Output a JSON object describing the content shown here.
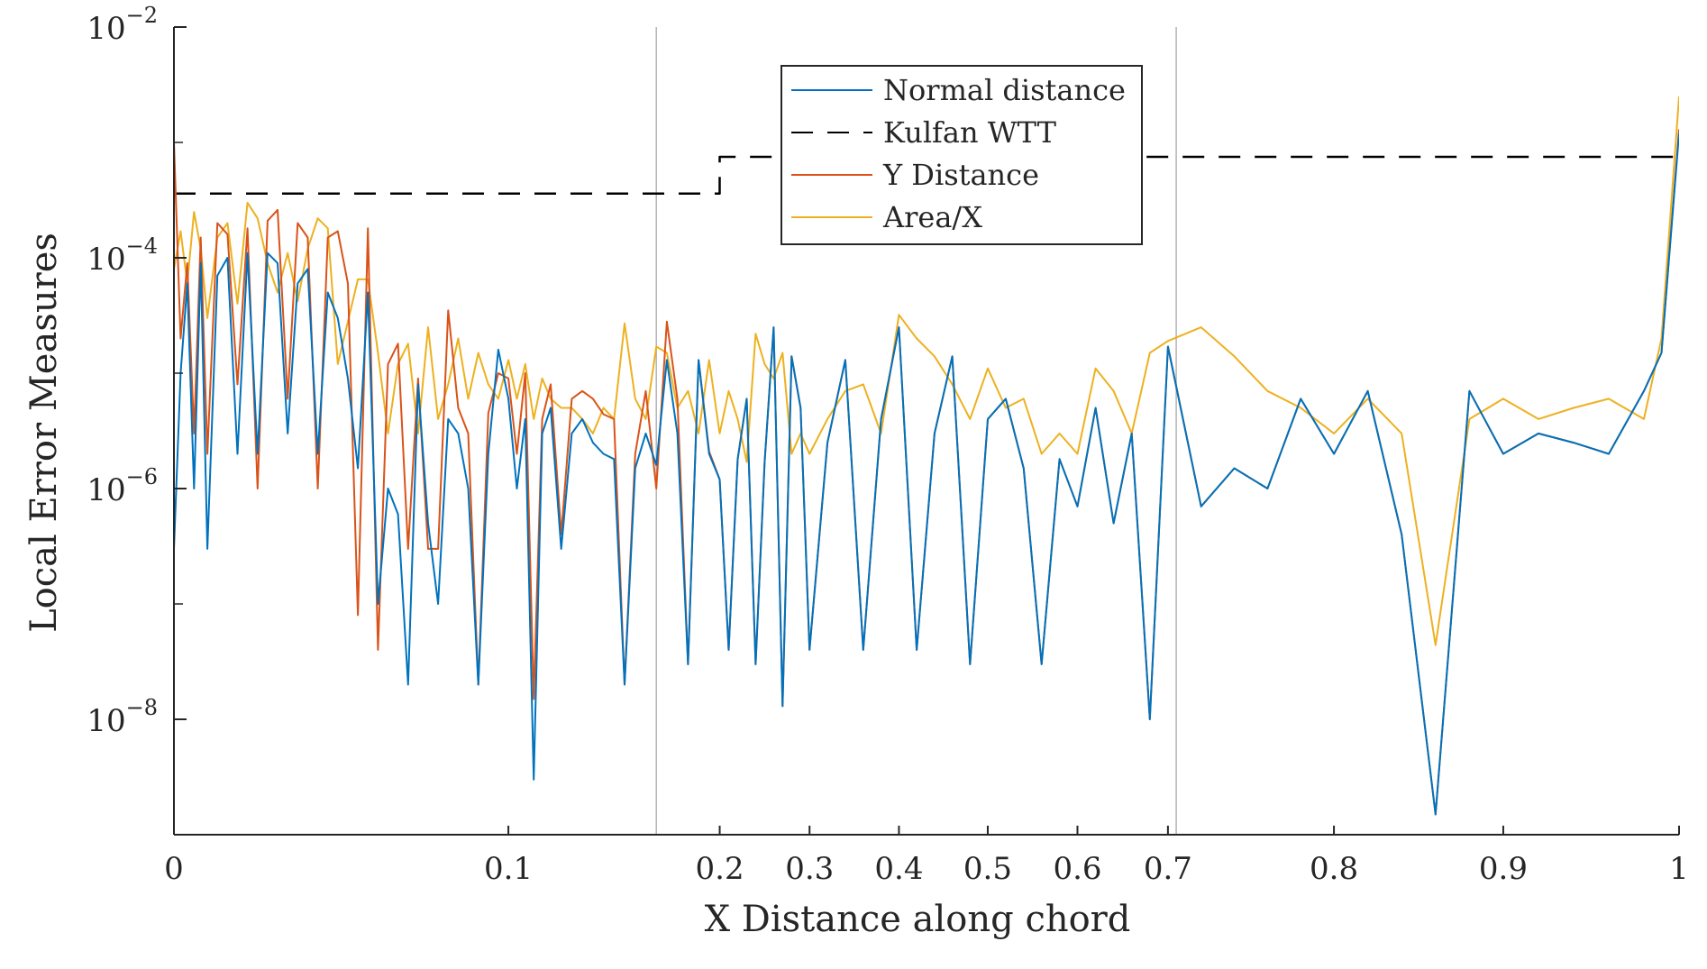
{
  "chart_data": {
    "type": "line",
    "xlabel": "X Distance along chord",
    "ylabel": "Local Error Measures",
    "x_scale": "warped (cosine-spaced chord)",
    "y_scale": "log",
    "xlim": [
      0,
      1
    ],
    "ylim": [
      1e-09,
      0.01
    ],
    "x_ticks": [
      {
        "value": 0,
        "label": "0"
      },
      {
        "value": 0.1,
        "label": "0.1"
      },
      {
        "value": 0.2,
        "label": "0.2"
      },
      {
        "value": 0.3,
        "label": "0.3"
      },
      {
        "value": 0.4,
        "label": "0.4"
      },
      {
        "value": 0.5,
        "label": "0.5"
      },
      {
        "value": 0.6,
        "label": "0.6"
      },
      {
        "value": 0.7,
        "label": "0.7"
      },
      {
        "value": 0.8,
        "label": "0.8"
      },
      {
        "value": 0.9,
        "label": "0.9"
      },
      {
        "value": 1,
        "label": "1"
      }
    ],
    "y_ticks": [
      {
        "value": 1e-08,
        "base": "10",
        "exp": "−8"
      },
      {
        "value": 1e-06,
        "base": "10",
        "exp": "−6"
      },
      {
        "value": 0.0001,
        "base": "10",
        "exp": "−4"
      },
      {
        "value": 0.01,
        "base": "10",
        "exp": "−2"
      }
    ],
    "x_warp_knots": [
      [
        0,
        0
      ],
      [
        0.1,
        0.2222
      ],
      [
        0.2,
        0.3626
      ],
      [
        0.3,
        0.4223
      ],
      [
        0.4,
        0.4817
      ],
      [
        0.5,
        0.5407
      ],
      [
        0.6,
        0.6003
      ],
      [
        0.7,
        0.6604
      ],
      [
        0.8,
        0.7707
      ],
      [
        0.9,
        0.8832
      ],
      [
        1,
        1
      ]
    ],
    "vertical_markers": [
      0.17,
      0.705
    ],
    "legend": {
      "position": "top-center",
      "entries": [
        "Normal distance",
        "Kulfan WTT",
        "Y Distance",
        "Area/X"
      ]
    },
    "colors": {
      "normal": "#0072BD",
      "kulfan": "#000000",
      "ydist": "#D95319",
      "area": "#EDB120",
      "axis": "#262626",
      "marker": "#b3b3b3"
    },
    "series": [
      {
        "name": "Kulfan WTT",
        "style": "dashed",
        "x": [
          0,
          0.195,
          0.195,
          0.2,
          0.2,
          0.21,
          0.21,
          1
        ],
        "y": [
          0.00036,
          0.00036,
          0.00036,
          0.00036,
          0.00075,
          0.00075,
          0.00075,
          0.00075
        ]
      },
      {
        "name": "Area/X",
        "style": "solid",
        "x": [
          0,
          0.002,
          0.004,
          0.006,
          0.008,
          0.01,
          0.013,
          0.016,
          0.019,
          0.022,
          0.025,
          0.028,
          0.031,
          0.034,
          0.037,
          0.04,
          0.043,
          0.046,
          0.049,
          0.052,
          0.055,
          0.058,
          0.061,
          0.064,
          0.067,
          0.07,
          0.073,
          0.076,
          0.079,
          0.082,
          0.085,
          0.088,
          0.091,
          0.094,
          0.097,
          0.1,
          0.104,
          0.108,
          0.112,
          0.116,
          0.12,
          0.125,
          0.13,
          0.135,
          0.14,
          0.145,
          0.15,
          0.155,
          0.16,
          0.165,
          0.17,
          0.175,
          0.18,
          0.185,
          0.19,
          0.195,
          0.2,
          0.21,
          0.22,
          0.23,
          0.24,
          0.25,
          0.26,
          0.27,
          0.28,
          0.29,
          0.3,
          0.32,
          0.34,
          0.36,
          0.38,
          0.4,
          0.42,
          0.44,
          0.46,
          0.48,
          0.5,
          0.52,
          0.54,
          0.56,
          0.58,
          0.6,
          0.62,
          0.64,
          0.66,
          0.68,
          0.7,
          0.72,
          0.74,
          0.76,
          0.78,
          0.8,
          0.82,
          0.84,
          0.86,
          0.88,
          0.9,
          0.92,
          0.94,
          0.96,
          0.98,
          0.99,
          1
        ],
        "y": [
          8e-05,
          0.00017,
          6e-05,
          0.00025,
          0.00012,
          3e-05,
          0.00015,
          0.0002,
          4e-05,
          0.0003,
          0.00022,
          9e-05,
          5e-05,
          0.00011,
          4.2e-05,
          0.00012,
          0.00022,
          0.00018,
          1.2e-05,
          2.8e-05,
          6.5e-05,
          6.5e-05,
          1.5e-05,
          3e-06,
          1.2e-05,
          1.8e-05,
          3e-06,
          2.5e-05,
          4e-06,
          8e-06,
          2e-05,
          6e-06,
          1.5e-05,
          8e-06,
          6e-06,
          1.3e-05,
          6e-06,
          1.2e-05,
          4e-06,
          9e-06,
          6e-06,
          5e-06,
          5e-06,
          4e-06,
          3e-06,
          5e-06,
          4e-06,
          2.7e-05,
          6e-06,
          4e-06,
          1.7e-05,
          1.5e-05,
          5e-06,
          7e-06,
          3e-06,
          1.3e-05,
          3e-06,
          7e-06,
          4e-06,
          1.7e-06,
          2.2e-05,
          1.2e-05,
          9e-06,
          1.5e-05,
          2e-06,
          3e-06,
          2e-06,
          4e-06,
          7e-06,
          8e-06,
          3e-06,
          3.2e-05,
          2e-05,
          1.4e-05,
          8e-06,
          4e-06,
          1.1e-05,
          5e-06,
          6e-06,
          2e-06,
          3e-06,
          2e-06,
          1.1e-05,
          7e-06,
          3e-06,
          1.5e-05,
          1.9e-05,
          2.5e-05,
          1.4e-05,
          7e-06,
          5e-06,
          3e-06,
          6e-06,
          3e-06,
          4.4e-08,
          4e-06,
          6e-06,
          4e-06,
          5e-06,
          6e-06,
          4e-06,
          2e-05,
          0.0025
        ]
      },
      {
        "name": "Y Distance",
        "style": "solid",
        "x": [
          0,
          0.002,
          0.004,
          0.006,
          0.008,
          0.01,
          0.013,
          0.016,
          0.019,
          0.022,
          0.025,
          0.028,
          0.031,
          0.034,
          0.037,
          0.04,
          0.043,
          0.046,
          0.049,
          0.052,
          0.055,
          0.058,
          0.061,
          0.064,
          0.067,
          0.07,
          0.073,
          0.076,
          0.079,
          0.082,
          0.085,
          0.088,
          0.091,
          0.094,
          0.097,
          0.1,
          0.104,
          0.108,
          0.112,
          0.116,
          0.12,
          0.125,
          0.13,
          0.135,
          0.14,
          0.145,
          0.15,
          0.155,
          0.16,
          0.165,
          0.17,
          0.175,
          0.18,
          0.185,
          0.19,
          0.195,
          0.2,
          0.21,
          0.22,
          0.23,
          0.24,
          0.25,
          0.26,
          0.27,
          0.28,
          0.29,
          0.3,
          0.32,
          0.34,
          0.36,
          0.38,
          0.4,
          0.42,
          0.44,
          0.46,
          0.48,
          0.5,
          0.52,
          0.54,
          0.56,
          0.58,
          0.6,
          0.62,
          0.64,
          0.66,
          0.68,
          0.7,
          0.72,
          0.74,
          0.76,
          0.78,
          0.8,
          0.82,
          0.84,
          0.86,
          0.88,
          0.9,
          0.92,
          0.94,
          0.96,
          0.98,
          0.99,
          1
        ],
        "y": [
          0.001,
          2e-05,
          9e-05,
          3e-06,
          0.00015,
          2e-06,
          0.0002,
          0.00016,
          8e-06,
          0.00018,
          1e-06,
          0.00021,
          0.00026,
          6e-06,
          0.0002,
          0.00015,
          1e-06,
          0.00015,
          0.00017,
          6e-05,
          8e-08,
          0.00018,
          4e-08,
          1.2e-05,
          1.8e-05,
          3e-07,
          9e-06,
          3e-07,
          3e-07,
          3.5e-05,
          5e-06,
          3e-06,
          2e-08,
          4.5e-06,
          1e-05,
          9e-06,
          2e-06,
          1e-05,
          1.5e-08,
          4e-06,
          8e-06,
          4e-07,
          6e-06,
          7e-06,
          6e-06,
          4.4e-06,
          4e-06,
          2e-08,
          2e-06,
          7e-06,
          1e-06,
          2.8e-05,
          6e-06,
          3e-08,
          1.3e-05,
          2.1e-06,
          1.2e-06,
          4e-08,
          1.8e-06,
          6e-06,
          3e-08,
          1.7e-06,
          2.5e-05,
          1.3e-08,
          1.4e-05,
          5e-06,
          4e-08,
          2.5e-06,
          1.3e-05,
          4e-08,
          4e-06,
          2.5e-05,
          4e-08,
          3e-06,
          1.4e-05,
          3e-08,
          4e-06,
          6e-06,
          1.5e-06,
          3e-08,
          1.8e-06,
          7e-07,
          5e-06,
          5e-07,
          3e-06,
          1e-08,
          1.7e-05,
          7e-07,
          1.5e-06,
          1e-06,
          6e-06,
          2e-06,
          7e-06,
          4e-07,
          1.5e-09,
          7e-06,
          2e-06,
          3e-06,
          2.5e-06,
          2e-06,
          7e-06,
          1.5e-05,
          0.0013
        ]
      },
      {
        "name": "Normal distance",
        "style": "solid",
        "x": [
          0,
          0.002,
          0.004,
          0.006,
          0.008,
          0.01,
          0.013,
          0.016,
          0.019,
          0.022,
          0.025,
          0.028,
          0.031,
          0.034,
          0.037,
          0.04,
          0.043,
          0.046,
          0.049,
          0.052,
          0.055,
          0.058,
          0.061,
          0.064,
          0.067,
          0.07,
          0.073,
          0.076,
          0.079,
          0.082,
          0.085,
          0.088,
          0.091,
          0.094,
          0.097,
          0.1,
          0.104,
          0.108,
          0.112,
          0.116,
          0.12,
          0.125,
          0.13,
          0.135,
          0.14,
          0.145,
          0.15,
          0.155,
          0.16,
          0.165,
          0.17,
          0.175,
          0.18,
          0.185,
          0.19,
          0.195,
          0.2,
          0.21,
          0.22,
          0.23,
          0.24,
          0.25,
          0.26,
          0.27,
          0.28,
          0.29,
          0.3,
          0.32,
          0.34,
          0.36,
          0.38,
          0.4,
          0.42,
          0.44,
          0.46,
          0.48,
          0.5,
          0.52,
          0.54,
          0.56,
          0.58,
          0.6,
          0.62,
          0.64,
          0.66,
          0.68,
          0.7,
          0.72,
          0.74,
          0.76,
          0.78,
          0.8,
          0.82,
          0.84,
          0.86,
          0.88,
          0.9,
          0.92,
          0.94,
          0.96,
          0.98,
          0.99,
          1
        ],
        "y": [
          3e-07,
          1e-05,
          6e-05,
          1e-06,
          9e-05,
          3e-07,
          7e-05,
          0.0001,
          2e-06,
          0.00011,
          2e-06,
          0.00011,
          9e-05,
          3e-06,
          6e-05,
          8e-05,
          2e-06,
          5e-05,
          3e-05,
          9e-06,
          1.5e-06,
          5e-05,
          1e-07,
          1e-06,
          6e-07,
          2e-08,
          8e-06,
          5e-07,
          1e-07,
          4e-06,
          3e-06,
          1e-06,
          2e-08,
          2e-06,
          1.6e-05,
          6e-06,
          1e-06,
          4e-06,
          3e-09,
          3e-06,
          5e-06,
          3e-07,
          3e-06,
          4e-06,
          2.5e-06,
          2e-06,
          1.8e-06,
          2e-08,
          1.5e-06,
          3e-06,
          1.6e-06,
          1.3e-05,
          3e-06,
          3e-08,
          1.3e-05,
          2e-06,
          1.2e-06,
          4e-08,
          1.8e-06,
          6e-06,
          3e-08,
          1.7e-06,
          2.5e-05,
          1.3e-08,
          1.4e-05,
          5e-06,
          4e-08,
          2.5e-06,
          1.3e-05,
          4e-08,
          4e-06,
          2.5e-05,
          4e-08,
          3e-06,
          1.4e-05,
          3e-08,
          4e-06,
          6e-06,
          1.5e-06,
          3e-08,
          1.8e-06,
          7e-07,
          5e-06,
          5e-07,
          3e-06,
          1e-08,
          1.7e-05,
          7e-07,
          1.5e-06,
          1e-06,
          6e-06,
          2e-06,
          7e-06,
          4e-07,
          1.5e-09,
          7e-06,
          2e-06,
          3e-06,
          2.5e-06,
          2e-06,
          7e-06,
          1.5e-05,
          0.0012
        ]
      }
    ]
  }
}
